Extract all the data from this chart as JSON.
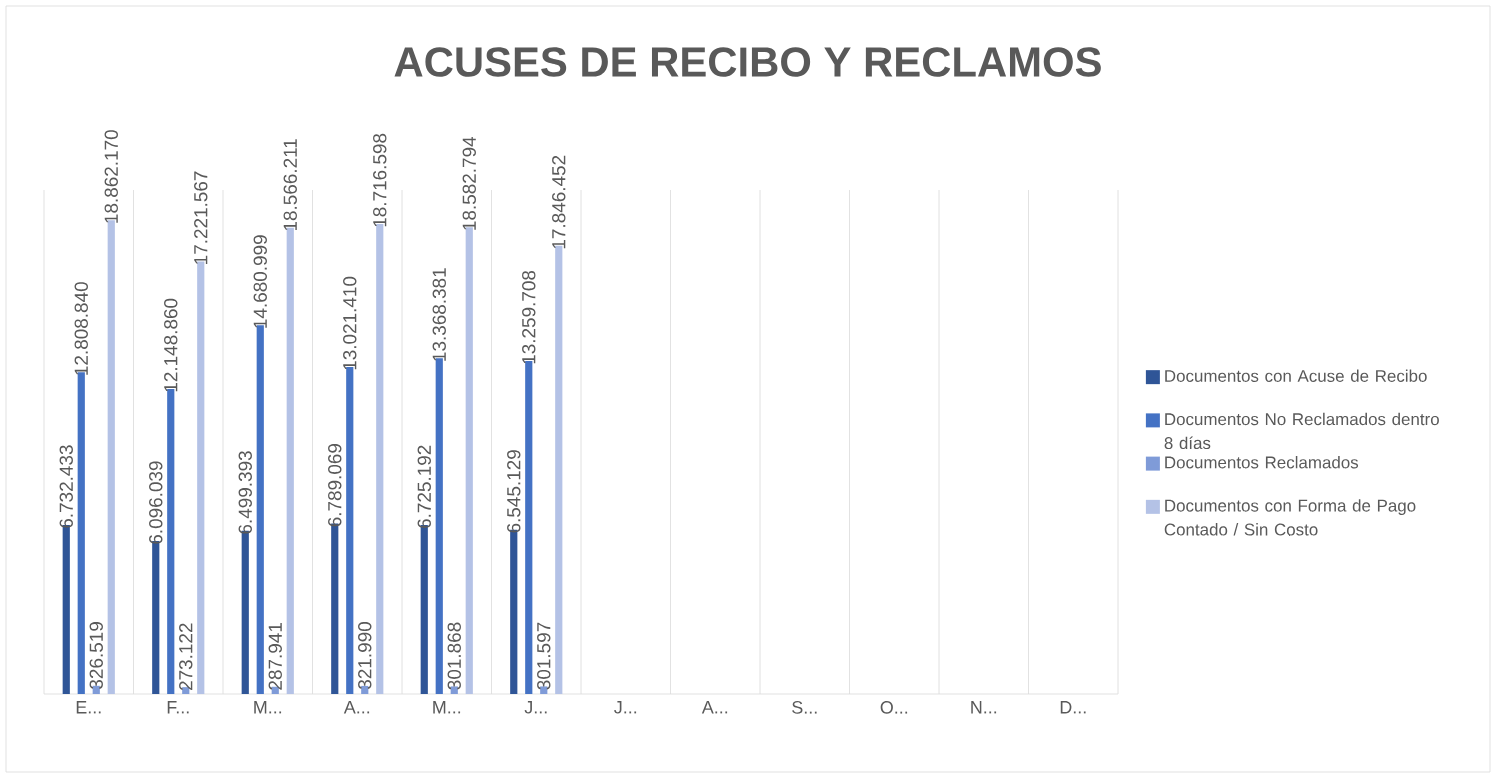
{
  "chart_data": {
    "type": "bar",
    "title": "ACUSES DE RECIBO Y RECLAMOS",
    "categories": [
      "E...",
      "F...",
      "M...",
      "A...",
      "M...",
      "J...",
      "J...",
      "A...",
      "S...",
      "O...",
      "N...",
      "D..."
    ],
    "series": [
      {
        "name": "Documentos con Acuse de Recibo",
        "color": "#2f5597",
        "values": [
          6732433,
          6096039,
          6499393,
          6789069,
          6725192,
          6545129,
          null,
          null,
          null,
          null,
          null,
          null
        ],
        "value_labels": [
          "6.732.433",
          "6.096.039",
          "6.499.393",
          "6.789.069",
          "6.725.192",
          "6.545.129",
          null,
          null,
          null,
          null,
          null,
          null
        ]
      },
      {
        "name": "Documentos No Reclamados dentro 8 días",
        "color": "#4472c4",
        "values": [
          12808840,
          12148860,
          14680999,
          13021410,
          13368381,
          13259708,
          null,
          null,
          null,
          null,
          null,
          null
        ],
        "value_labels": [
          "12.808.840",
          "12.148.860",
          "14.680.999",
          "13.021.410",
          "13.368.381",
          "13.259.708",
          null,
          null,
          null,
          null,
          null,
          null
        ]
      },
      {
        "name": "Documentos Reclamados",
        "color": "#7f9bd8",
        "values": [
          326519,
          273122,
          287941,
          321990,
          301868,
          301597,
          null,
          null,
          null,
          null,
          null,
          null
        ],
        "value_labels": [
          "326.519",
          "273.122",
          "287.941",
          "321.990",
          "301.868",
          "301.597",
          null,
          null,
          null,
          null,
          null,
          null
        ]
      },
      {
        "name": "Documentos con Forma de Pago Contado / Sin Costo",
        "color": "#b4c2e6",
        "values": [
          18862170,
          17221567,
          18566211,
          18716598,
          18582794,
          17846452,
          null,
          null,
          null,
          null,
          null,
          null
        ],
        "value_labels": [
          "18.862.170",
          "17.221.567",
          "18.566.211",
          "18.716.598",
          "18.582.794",
          "17.846.452",
          null,
          null,
          null,
          null,
          null,
          null
        ]
      }
    ],
    "grid": "x",
    "legend": "right"
  }
}
